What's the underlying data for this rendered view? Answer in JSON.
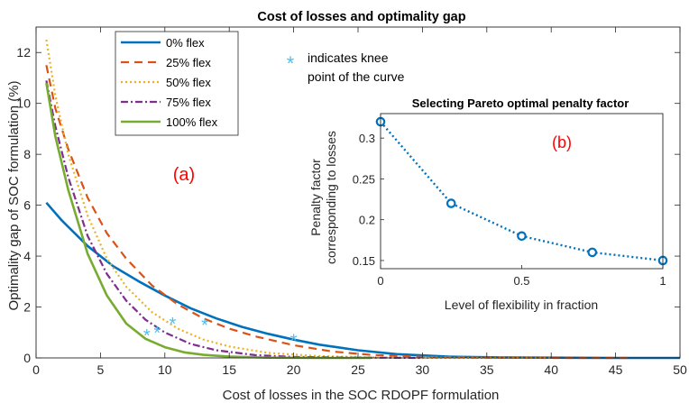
{
  "chart_data": [
    {
      "type": "line",
      "title": "Cost of losses and optimality gap",
      "xlabel": "Cost of losses in the SOC RDOPF formulation",
      "ylabel": "Optimality gap of SOC formulation (%)",
      "xlim": [
        0,
        50
      ],
      "ylim": [
        0,
        13
      ],
      "xticks": [
        0,
        5,
        10,
        15,
        20,
        25,
        30,
        35,
        40,
        45,
        50
      ],
      "yticks": [
        0,
        2,
        4,
        6,
        8,
        10,
        12
      ],
      "panel_label": "(a)",
      "grid": false,
      "legend_position": "top-left",
      "series": [
        {
          "name": "0% flex",
          "color": "#0072BD",
          "style": "solid",
          "x": [
            0.8,
            2,
            4,
            6,
            8,
            10,
            12,
            14,
            16,
            18,
            20,
            22,
            25,
            28,
            32,
            36,
            40,
            45,
            50
          ],
          "y": [
            6.1,
            5.4,
            4.4,
            3.6,
            3.0,
            2.45,
            1.95,
            1.55,
            1.22,
            0.95,
            0.72,
            0.52,
            0.3,
            0.15,
            0.05,
            0.02,
            0.01,
            0.0,
            0.0
          ]
        },
        {
          "name": "25% flex",
          "color": "#D95319",
          "style": "dashed",
          "x": [
            0.8,
            1.5,
            2.5,
            4,
            5.5,
            7,
            9,
            11,
            13,
            15,
            17,
            20,
            23,
            26,
            30,
            35,
            40,
            46
          ],
          "y": [
            11.5,
            9.8,
            8.2,
            6.3,
            4.9,
            3.9,
            2.85,
            2.1,
            1.55,
            1.15,
            0.85,
            0.5,
            0.25,
            0.12,
            0.04,
            0.01,
            0.0,
            0.0
          ]
        },
        {
          "name": "50% flex",
          "color": "#EDB120",
          "style": "dotted",
          "x": [
            0.8,
            1.5,
            2.5,
            4,
            5.5,
            7,
            9,
            11,
            13,
            15,
            18,
            22,
            26,
            30,
            35,
            40
          ],
          "y": [
            12.5,
            10.3,
            8.0,
            5.6,
            3.9,
            2.8,
            1.8,
            1.15,
            0.72,
            0.45,
            0.2,
            0.07,
            0.02,
            0.0,
            0.0,
            0.0
          ]
        },
        {
          "name": "75% flex",
          "color": "#7E2F8E",
          "style": "dashdot",
          "x": [
            0.8,
            1.5,
            2.5,
            4,
            5.5,
            7,
            8.5,
            10,
            12,
            14,
            17,
            20,
            25,
            30
          ],
          "y": [
            10.9,
            9.1,
            7.1,
            4.8,
            3.3,
            2.25,
            1.5,
            1.0,
            0.55,
            0.3,
            0.11,
            0.04,
            0.01,
            0.0
          ]
        },
        {
          "name": "100% flex",
          "color": "#77AC30",
          "style": "solid",
          "x": [
            0.8,
            1.5,
            2.5,
            4,
            5.5,
            7,
            8.5,
            10,
            11.5,
            13,
            15,
            18,
            22,
            26
          ],
          "y": [
            10.8,
            8.7,
            6.6,
            4.1,
            2.45,
            1.35,
            0.75,
            0.42,
            0.22,
            0.12,
            0.05,
            0.01,
            0.0,
            0.0
          ]
        }
      ],
      "knee_points": {
        "color": "#4DBEEE",
        "label_line1": "indicates knee",
        "label_line2": "point of the curve",
        "points": [
          {
            "x": 8.6,
            "y": 0.92
          },
          {
            "x": 9.4,
            "y": 1.02
          },
          {
            "x": 10.6,
            "y": 1.38
          },
          {
            "x": 13.1,
            "y": 1.32
          },
          {
            "x": 20.0,
            "y": 0.72
          }
        ]
      }
    },
    {
      "type": "line",
      "title": "Selecting Pareto optimal penalty factor",
      "xlabel": "Level of flexibility in fraction",
      "ylabel_line1": "Penalty factor",
      "ylabel_line2": "corresponding to losses",
      "xlim": [
        0,
        1
      ],
      "ylim": [
        0.14,
        0.33
      ],
      "xticks": [
        0,
        0.5,
        1
      ],
      "yticks": [
        0.15,
        0.2,
        0.25,
        0.3
      ],
      "panel_label": "(b)",
      "series": [
        {
          "name": "penalty factor",
          "color": "#0072BD",
          "style": "dotted",
          "marker": "circle",
          "x": [
            0,
            0.25,
            0.5,
            0.75,
            1
          ],
          "y": [
            0.32,
            0.22,
            0.18,
            0.16,
            0.15
          ]
        }
      ]
    }
  ]
}
